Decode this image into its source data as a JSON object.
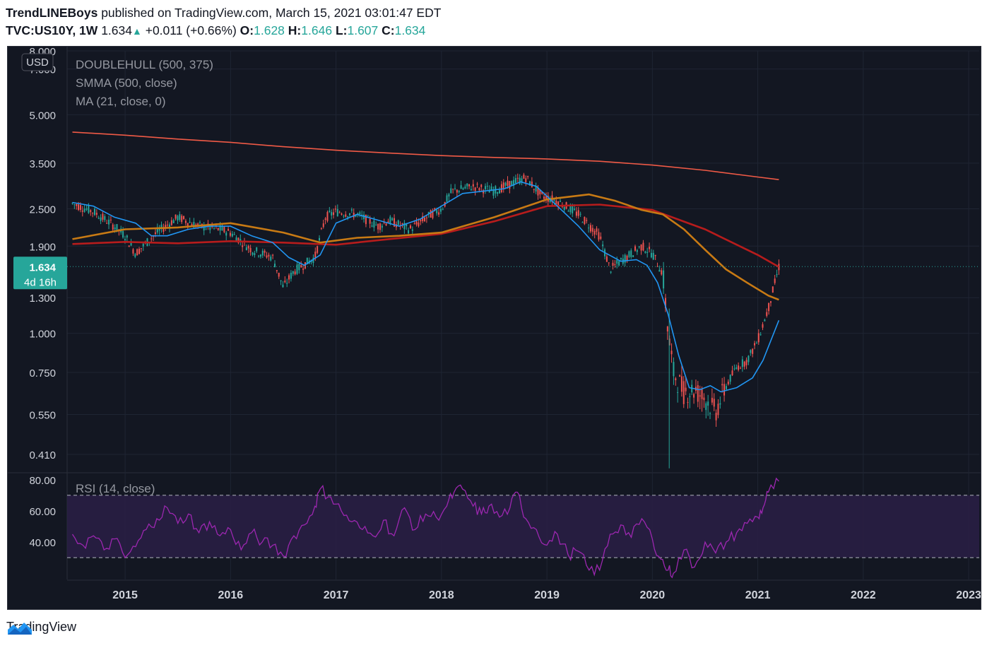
{
  "header": {
    "author": "TrendLINEBoys",
    "published": "published on TradingView.com, March 15, 2021 03:01:47 EDT",
    "symbol": "TVC:US10Y, 1W",
    "price": "1.634",
    "change": "+0.011 (+0.66%)",
    "open_label": "O:",
    "open": "1.628",
    "high_label": "H:",
    "high": "1.646",
    "low_label": "L:",
    "low": "1.607",
    "close_label": "C:",
    "close": "1.634"
  },
  "footer": {
    "brand": "TradingView"
  },
  "colors": {
    "background": "#131722",
    "up": "#26a69a",
    "down": "#ef5350",
    "ma21": "#2196f3",
    "smma": "#b71c1c",
    "doublehull": "#c87a14",
    "trend_line": "#f05a46",
    "rsi": "#9c27b0",
    "rsi_band": "#2a1f45"
  },
  "chart_data": [
    {
      "type": "candlestick",
      "title": "TVC:US10Y, 1W",
      "currency_label": "USD",
      "y_scale": "log",
      "ylim": [
        0.36,
        8.0
      ],
      "y_ticks": [
        "8.000",
        "7.000",
        "5.000",
        "3.500",
        "2.500",
        "1.900",
        "1.300",
        "1.000",
        "0.750",
        "0.550",
        "0.410"
      ],
      "x_ticks": [
        "2015",
        "2016",
        "2017",
        "2018",
        "2019",
        "2020",
        "2021",
        "2022",
        "2023"
      ],
      "x_range": [
        2014.45,
        2023.1
      ],
      "last_price_label": "1.634",
      "countdown_label": "4d 16h",
      "last_price": 1.634,
      "indicators": [
        {
          "name": "DOUBLEHULL (500, 375)"
        },
        {
          "name": "SMMA (500, close)"
        },
        {
          "name": "MA (21, close, 0)"
        }
      ],
      "series": [
        {
          "name": "close",
          "x": [
            2014.5,
            2014.7,
            2014.9,
            2015.0,
            2015.1,
            2015.3,
            2015.5,
            2015.7,
            2015.9,
            2016.0,
            2016.2,
            2016.4,
            2016.5,
            2016.6,
            2016.8,
            2016.9,
            2017.0,
            2017.2,
            2017.4,
            2017.5,
            2017.7,
            2017.9,
            2018.0,
            2018.1,
            2018.3,
            2018.5,
            2018.7,
            2018.8,
            2018.95,
            2019.1,
            2019.3,
            2019.5,
            2019.6,
            2019.7,
            2019.9,
            2020.0,
            2020.1,
            2020.15,
            2020.2,
            2020.3,
            2020.4,
            2020.5,
            2020.6,
            2020.7,
            2020.8,
            2020.9,
            2021.0,
            2021.1,
            2021.2
          ],
          "values": [
            2.6,
            2.45,
            2.2,
            2.05,
            1.8,
            2.1,
            2.35,
            2.2,
            2.15,
            2.1,
            1.85,
            1.75,
            1.4,
            1.58,
            1.75,
            2.35,
            2.45,
            2.4,
            2.2,
            2.3,
            2.15,
            2.4,
            2.5,
            2.85,
            2.95,
            2.85,
            3.05,
            3.15,
            2.75,
            2.65,
            2.4,
            2.05,
            1.6,
            1.7,
            1.9,
            1.8,
            1.55,
            1.0,
            0.75,
            0.65,
            0.66,
            0.62,
            0.56,
            0.68,
            0.78,
            0.82,
            0.95,
            1.2,
            1.63
          ]
        },
        {
          "name": "MA (21, close, 0)",
          "x": [
            2014.5,
            2014.7,
            2014.9,
            2015.1,
            2015.25,
            2015.4,
            2015.6,
            2015.8,
            2016.0,
            2016.2,
            2016.4,
            2016.55,
            2016.7,
            2016.85,
            2017.0,
            2017.2,
            2017.4,
            2017.6,
            2017.8,
            2018.0,
            2018.2,
            2018.4,
            2018.6,
            2018.75,
            2018.9,
            2019.1,
            2019.3,
            2019.5,
            2019.7,
            2019.85,
            2019.95,
            2020.05,
            2020.15,
            2020.25,
            2020.35,
            2020.45,
            2020.55,
            2020.65,
            2020.8,
            2020.95,
            2021.05,
            2021.2
          ],
          "values": [
            2.62,
            2.55,
            2.35,
            2.25,
            2.05,
            2.05,
            2.15,
            2.2,
            2.2,
            2.05,
            1.95,
            1.75,
            1.65,
            1.78,
            2.25,
            2.4,
            2.3,
            2.2,
            2.32,
            2.55,
            2.8,
            2.85,
            2.9,
            3.05,
            2.95,
            2.55,
            2.2,
            1.85,
            1.7,
            1.72,
            1.65,
            1.45,
            1.15,
            0.85,
            0.67,
            0.66,
            0.68,
            0.65,
            0.67,
            0.72,
            0.82,
            1.1
          ]
        },
        {
          "name": "SMMA (500, close)",
          "x": [
            2014.5,
            2015.0,
            2015.5,
            2016.0,
            2016.5,
            2017.0,
            2017.5,
            2018.0,
            2018.5,
            2019.0,
            2019.5,
            2020.0,
            2020.5,
            2021.0,
            2021.2
          ],
          "values": [
            1.93,
            1.96,
            1.94,
            1.97,
            1.95,
            1.92,
            2.0,
            2.08,
            2.28,
            2.55,
            2.58,
            2.48,
            2.15,
            1.78,
            1.63
          ]
        },
        {
          "name": "DOUBLEHULL (500, 375)",
          "x": [
            2014.5,
            2015.0,
            2015.5,
            2016.0,
            2016.5,
            2016.85,
            2017.2,
            2017.6,
            2018.0,
            2018.5,
            2019.0,
            2019.4,
            2019.65,
            2019.9,
            2020.1,
            2020.3,
            2020.5,
            2020.7,
            2020.9,
            2021.1,
            2021.2
          ],
          "values": [
            2.0,
            2.15,
            2.18,
            2.25,
            2.1,
            1.95,
            2.02,
            2.05,
            2.1,
            2.35,
            2.68,
            2.78,
            2.65,
            2.48,
            2.4,
            2.15,
            1.85,
            1.6,
            1.45,
            1.32,
            1.28
          ]
        },
        {
          "name": "trend",
          "x": [
            2014.5,
            2015.0,
            2015.5,
            2016.0,
            2016.5,
            2017.0,
            2017.5,
            2018.0,
            2018.5,
            2019.0,
            2019.5,
            2020.0,
            2020.5,
            2021.0,
            2021.2
          ],
          "values": [
            4.4,
            4.3,
            4.18,
            4.08,
            3.95,
            3.85,
            3.77,
            3.7,
            3.65,
            3.61,
            3.55,
            3.45,
            3.32,
            3.16,
            3.1
          ]
        }
      ]
    },
    {
      "type": "line",
      "title": "RSI (14, close)",
      "ylim": [
        16,
        84
      ],
      "y_ticks": [
        "80.00",
        "60.00",
        "40.00"
      ],
      "band": [
        30,
        70
      ],
      "x": [
        2014.5,
        2014.6,
        2014.7,
        2014.8,
        2014.9,
        2015.0,
        2015.1,
        2015.2,
        2015.3,
        2015.4,
        2015.5,
        2015.6,
        2015.7,
        2015.8,
        2015.9,
        2016.0,
        2016.1,
        2016.2,
        2016.3,
        2016.4,
        2016.5,
        2016.6,
        2016.7,
        2016.8,
        2016.85,
        2016.95,
        2017.05,
        2017.15,
        2017.25,
        2017.35,
        2017.45,
        2017.55,
        2017.65,
        2017.75,
        2017.85,
        2017.95,
        2018.05,
        2018.12,
        2018.2,
        2018.3,
        2018.38,
        2018.45,
        2018.55,
        2018.65,
        2018.72,
        2018.8,
        2018.9,
        2019.0,
        2019.1,
        2019.2,
        2019.3,
        2019.4,
        2019.5,
        2019.6,
        2019.7,
        2019.8,
        2019.9,
        2020.0,
        2020.08,
        2020.15,
        2020.2,
        2020.3,
        2020.4,
        2020.5,
        2020.6,
        2020.7,
        2020.8,
        2020.9,
        2021.0,
        2021.05,
        2021.1,
        2021.2
      ],
      "values": [
        45,
        38,
        44,
        35,
        42,
        30,
        37,
        48,
        55,
        62,
        52,
        58,
        46,
        53,
        44,
        48,
        35,
        46,
        40,
        38,
        31,
        44,
        51,
        63,
        74,
        69,
        60,
        53,
        48,
        44,
        54,
        44,
        62,
        48,
        58,
        56,
        63,
        72,
        74,
        63,
        58,
        63,
        56,
        62,
        72,
        55,
        48,
        38,
        45,
        32,
        34,
        22,
        22,
        45,
        51,
        43,
        55,
        42,
        29,
        22,
        20,
        35,
        24,
        40,
        33,
        40,
        46,
        52,
        56,
        62,
        72,
        79
      ]
    }
  ]
}
